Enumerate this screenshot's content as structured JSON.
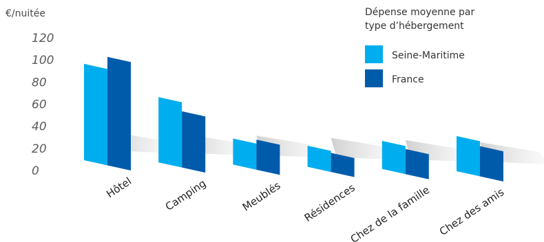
{
  "chart_data": {
    "type": "bar",
    "ylabel": "€/nuitée",
    "ylim": [
      0,
      120
    ],
    "yticks": [
      "0",
      "20",
      "40",
      "60",
      "80",
      "100",
      "120"
    ],
    "categories": [
      "Hôtel",
      "Camping",
      "Meublés",
      "Résidences",
      "Chez de la famille",
      "Chez des amis"
    ],
    "series": [
      {
        "name": "Seine-Maritime",
        "values": [
          96,
          65,
          26,
          21,
          28,
          35
        ],
        "color": "#00aeef"
      },
      {
        "name": "France",
        "values": [
          108,
          56,
          30,
          19,
          25,
          30
        ],
        "color": "#005baa"
      }
    ],
    "legend_title": [
      "Dépense moyenne par",
      "type d’hébergement"
    ],
    "legend_position": "top-right"
  }
}
